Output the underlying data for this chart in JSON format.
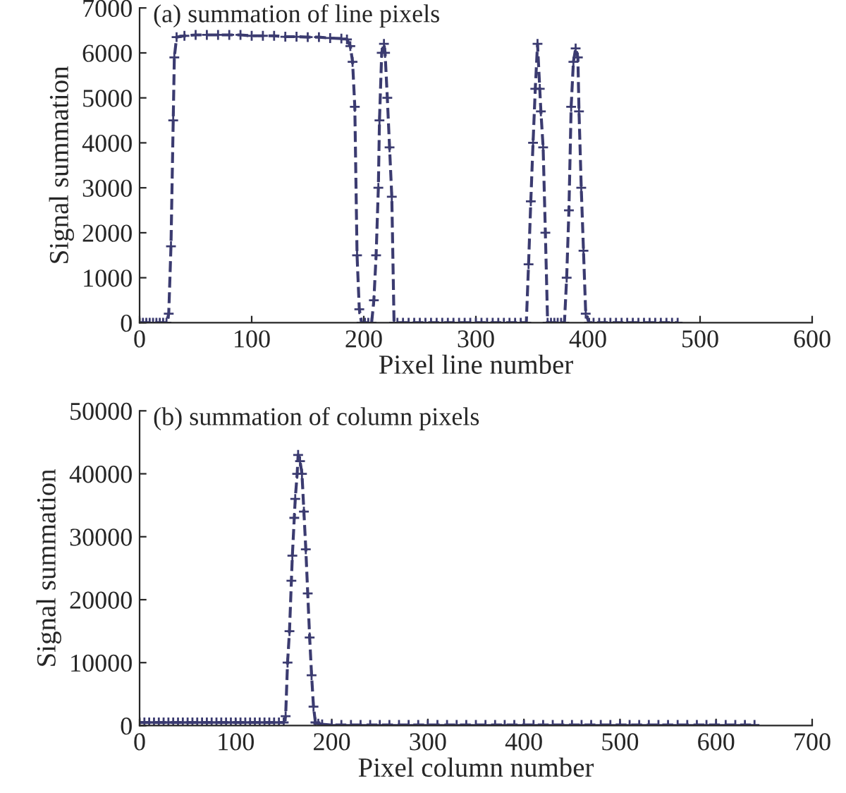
{
  "chart_data": [
    {
      "type": "line",
      "title": "(a) summation of line pixels",
      "xlabel": "Pixel line number",
      "ylabel": "Signal summation",
      "xlim": [
        0,
        600
      ],
      "xticks": [
        0,
        100,
        200,
        300,
        400,
        500,
        600
      ],
      "ylim": [
        0,
        7000
      ],
      "yticks": [
        0,
        1000,
        2000,
        3000,
        4000,
        5000,
        6000,
        7000
      ],
      "marker": "cross",
      "line_style": "dashed",
      "grid": false,
      "legend": false,
      "series": [
        {
          "color": "#3b3b70",
          "x": [
            0,
            3,
            6,
            9,
            12,
            15,
            18,
            21,
            24,
            26,
            28,
            30,
            31,
            33,
            40,
            50,
            60,
            70,
            80,
            90,
            100,
            110,
            120,
            130,
            140,
            150,
            160,
            170,
            180,
            185,
            188,
            190,
            192,
            194,
            196,
            198,
            201,
            204,
            207,
            209,
            211,
            213,
            214,
            216,
            218,
            219,
            221,
            223,
            225,
            227,
            230,
            235,
            240,
            245,
            250,
            255,
            260,
            265,
            270,
            275,
            280,
            285,
            290,
            295,
            300,
            305,
            310,
            315,
            320,
            325,
            330,
            335,
            340,
            345,
            347,
            349,
            351,
            353,
            355,
            357,
            358,
            360,
            362,
            364,
            367,
            370,
            373,
            376,
            379,
            381,
            383,
            385,
            387,
            389,
            391,
            392,
            394,
            396,
            398,
            401,
            405,
            410,
            415,
            420,
            425,
            430,
            435,
            440,
            445,
            450,
            455,
            460,
            465,
            470,
            475,
            480
          ],
          "values": [
            0,
            0,
            0,
            0,
            0,
            0,
            0,
            0,
            0,
            200,
            1700,
            4500,
            5900,
            6350,
            6380,
            6400,
            6400,
            6400,
            6400,
            6400,
            6380,
            6380,
            6380,
            6360,
            6360,
            6350,
            6350,
            6330,
            6320,
            6300,
            6150,
            5800,
            4800,
            1500,
            300,
            0,
            0,
            0,
            0,
            500,
            1500,
            3000,
            4500,
            6000,
            6200,
            6000,
            5000,
            3900,
            2800,
            0,
            0,
            0,
            0,
            0,
            0,
            0,
            0,
            0,
            0,
            0,
            0,
            0,
            0,
            0,
            0,
            0,
            0,
            0,
            0,
            0,
            0,
            0,
            0,
            0,
            1300,
            2700,
            4000,
            5200,
            6200,
            5200,
            4700,
            3900,
            2000,
            0,
            0,
            0,
            0,
            0,
            0,
            1000,
            2500,
            4800,
            5800,
            6100,
            5900,
            4700,
            3000,
            1600,
            200,
            0,
            0,
            0,
            0,
            0,
            0,
            0,
            0,
            0,
            0,
            0,
            0,
            0,
            0,
            0,
            0,
            0
          ]
        }
      ]
    },
    {
      "type": "line",
      "title": "(b) summation of column pixels",
      "xlabel": "Pixel column number",
      "ylabel": "Signal summation",
      "xlim": [
        0,
        700
      ],
      "xticks": [
        0,
        100,
        200,
        300,
        400,
        500,
        600,
        700
      ],
      "ylim": [
        0,
        50000
      ],
      "yticks": [
        0,
        10000,
        20000,
        30000,
        40000,
        50000
      ],
      "marker": "cross",
      "line_style": "dashed",
      "grid": false,
      "legend": false,
      "series": [
        {
          "color": "#3b3b70",
          "x": [
            0,
            5,
            10,
            15,
            20,
            25,
            30,
            35,
            40,
            45,
            50,
            55,
            60,
            65,
            70,
            75,
            80,
            85,
            90,
            95,
            100,
            105,
            110,
            115,
            120,
            125,
            130,
            135,
            140,
            145,
            150,
            152,
            154,
            156,
            158,
            159,
            161,
            162,
            164,
            165,
            167,
            169,
            171,
            173,
            175,
            177,
            179,
            181,
            183,
            186,
            190,
            200,
            210,
            220,
            230,
            240,
            250,
            260,
            270,
            280,
            290,
            300,
            310,
            320,
            330,
            340,
            350,
            360,
            370,
            380,
            390,
            400,
            410,
            420,
            430,
            440,
            450,
            460,
            470,
            480,
            490,
            500,
            510,
            520,
            530,
            540,
            550,
            560,
            570,
            580,
            590,
            600,
            610,
            620,
            630,
            640
          ],
          "values": [
            500,
            500,
            500,
            500,
            500,
            500,
            500,
            500,
            500,
            500,
            500,
            500,
            500,
            500,
            500,
            500,
            500,
            500,
            500,
            500,
            500,
            500,
            500,
            500,
            500,
            500,
            500,
            500,
            500,
            500,
            500,
            1500,
            10000,
            15000,
            23000,
            27000,
            33000,
            36000,
            40000,
            43000,
            42000,
            40000,
            34000,
            28000,
            21000,
            14000,
            8000,
            3000,
            500,
            300,
            200,
            100,
            100,
            100,
            100,
            100,
            100,
            100,
            100,
            100,
            100,
            100,
            100,
            100,
            100,
            100,
            100,
            100,
            100,
            100,
            100,
            100,
            100,
            100,
            100,
            100,
            100,
            100,
            100,
            100,
            100,
            100,
            100,
            100,
            100,
            100,
            100,
            100,
            100,
            100,
            100,
            100,
            100,
            100,
            100,
            100
          ]
        }
      ]
    }
  ]
}
